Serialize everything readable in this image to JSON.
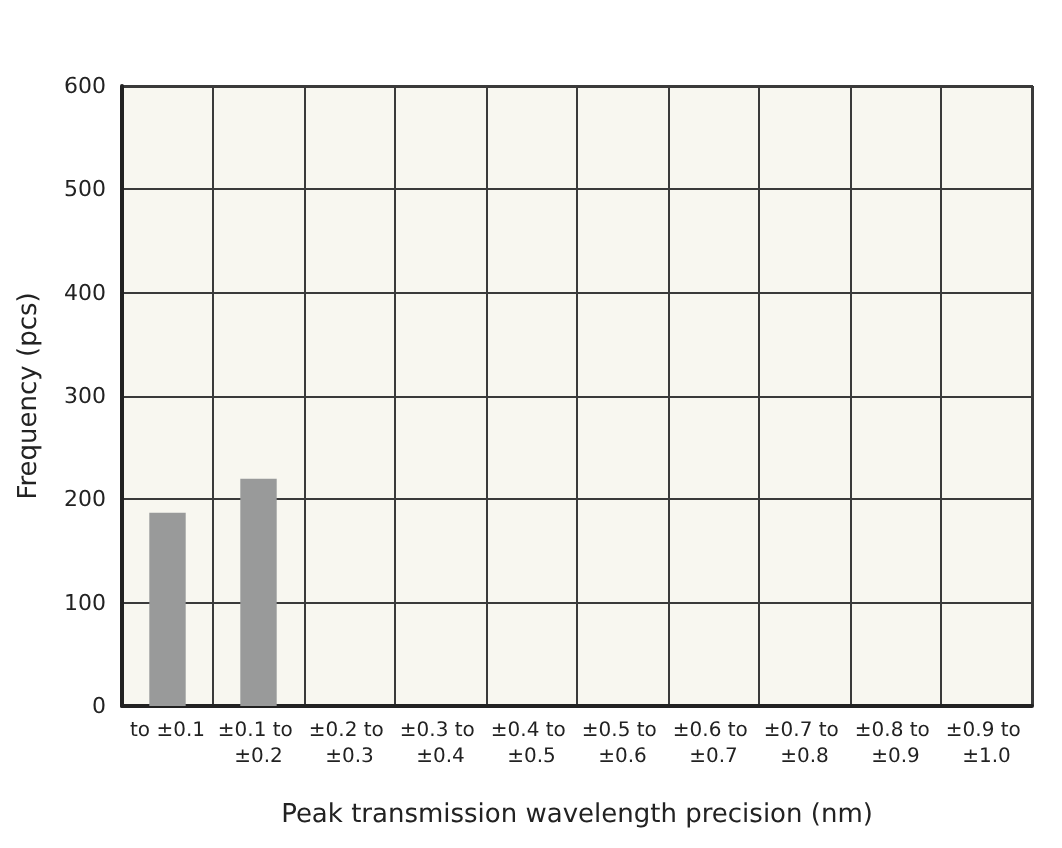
{
  "chart_data": {
    "type": "bar",
    "xlabel": "Peak transmission wavelength precision (nm)",
    "ylabel": "Frequency (pcs)",
    "categories": [
      "to ±0.1",
      "±0.1 to ±0.2",
      "±0.2 to ±0.3",
      "±0.3 to ±0.4",
      "±0.4 to ±0.5",
      "±0.5 to ±0.6",
      "±0.6 to ±0.7",
      "±0.7 to ±0.8",
      "±0.8 to ±0.9",
      "±0.9 to ±1.0"
    ],
    "values": [
      187,
      220,
      0,
      0,
      0,
      0,
      0,
      0,
      0,
      0
    ],
    "color": "#999a9a",
    "ylim": [
      0,
      600
    ],
    "yticks": [
      0,
      100,
      200,
      300,
      400,
      500,
      600
    ],
    "grid": true
  }
}
